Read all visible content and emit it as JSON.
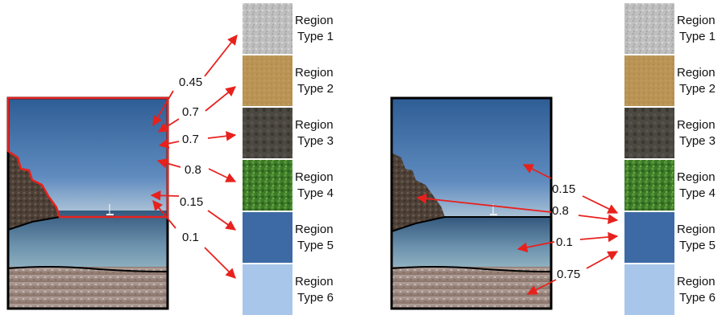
{
  "left_panel": {
    "region_types": [
      {
        "line1": "Region",
        "line2": "Type 1",
        "texture": "gravel"
      },
      {
        "line1": "Region",
        "line2": "Type 2",
        "texture": "sand"
      },
      {
        "line1": "Region",
        "line2": "Type 3",
        "texture": "dark-rock"
      },
      {
        "line1": "Region",
        "line2": "Type 4",
        "texture": "vegetation"
      },
      {
        "line1": "Region",
        "line2": "Type 5",
        "texture": "deep-water"
      },
      {
        "line1": "Region",
        "line2": "Type 6",
        "texture": "light-sky"
      }
    ],
    "weights": [
      "0.45",
      "0.7",
      "0.7",
      "0.8",
      "0.15",
      "0.1"
    ]
  },
  "right_panel": {
    "region_types": [
      {
        "line1": "Region",
        "line2": "Type 1",
        "texture": "gravel"
      },
      {
        "line1": "Region",
        "line2": "Type 2",
        "texture": "sand"
      },
      {
        "line1": "Region",
        "line2": "Type 3",
        "texture": "dark-rock"
      },
      {
        "line1": "Region",
        "line2": "Type 4",
        "texture": "vegetation"
      },
      {
        "line1": "Region",
        "line2": "Type 5",
        "texture": "deep-water"
      },
      {
        "line1": "Region",
        "line2": "Type 6",
        "texture": "light-sky"
      }
    ],
    "weights": [
      "0.15",
      "0.8",
      "0.1",
      "0.75"
    ]
  },
  "colors": {
    "arrow": "#e8211d",
    "highlight": "#e8211d",
    "frame": "#000000",
    "sky_top": "#2f5f96",
    "sky_bottom": "#a9c2d8",
    "sea": "#5b84a4",
    "beach": "#9a8478",
    "gravel": "#bdbdbd",
    "sand": "#b99455",
    "dark_rock": "#4a4640",
    "vegetation": "#3f7a2a",
    "deep_water": "#3d6aa5",
    "light_sky": "#a8c6ea"
  }
}
